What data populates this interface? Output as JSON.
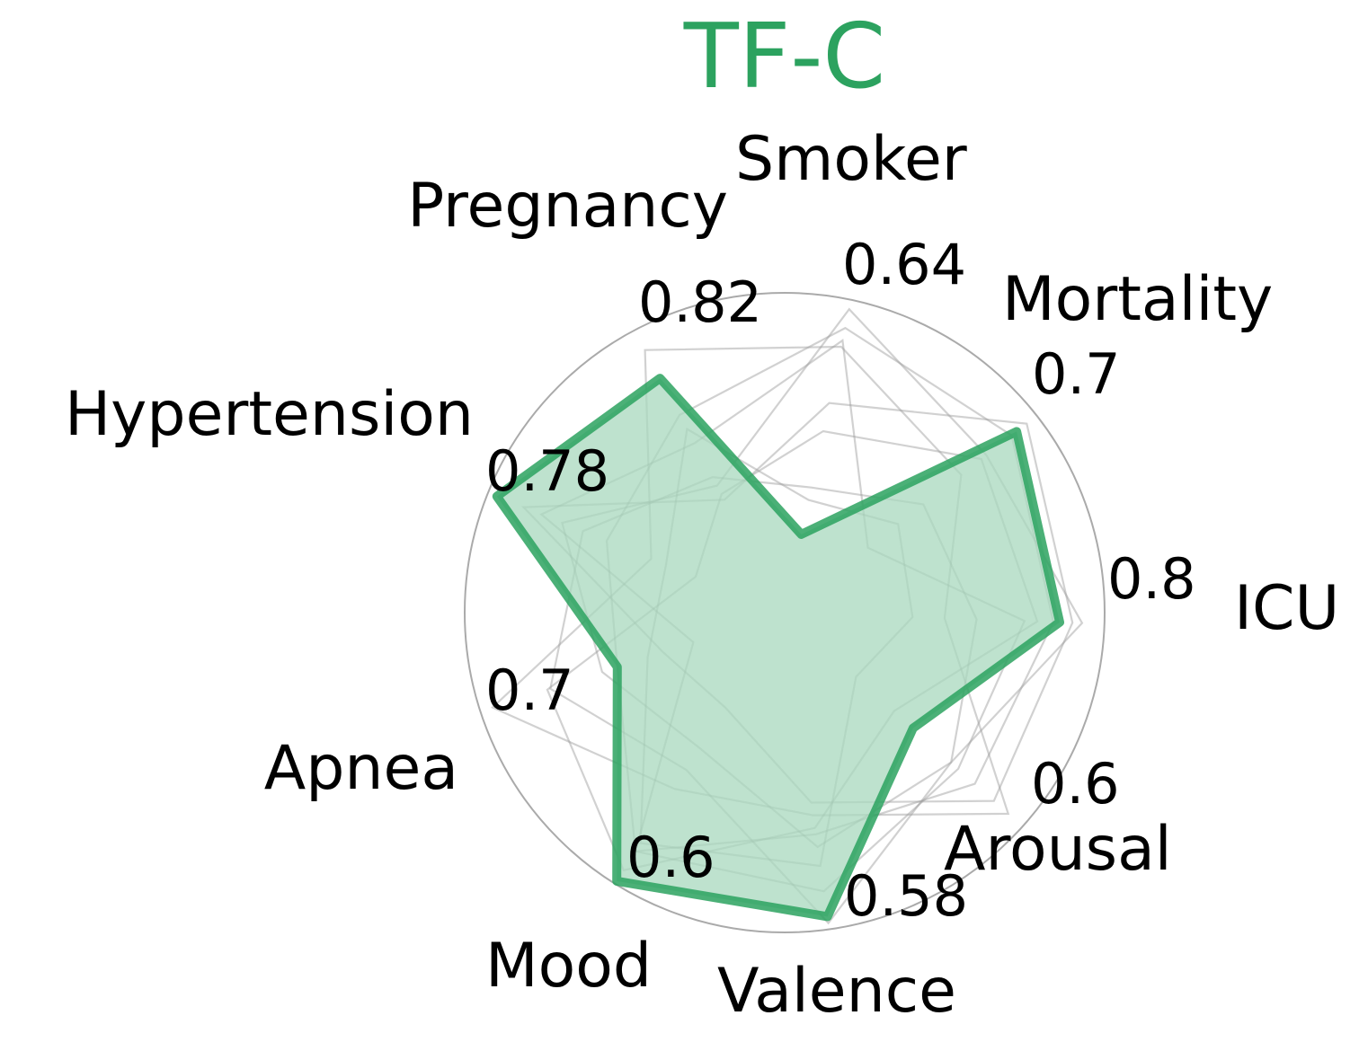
{
  "chart_data": {
    "type": "radar",
    "title": "TF-C",
    "title_color": "#2ca25f",
    "highlight_color": "#2ca25f",
    "fill_color": "#a8d8bd",
    "background_line_color": "#999999",
    "grid": "outer circle only",
    "categories": [
      "ICU",
      "Mortality",
      "Smoker",
      "Pregnancy",
      "Hypertension",
      "Apnea",
      "Mood",
      "Valence",
      "Arousal"
    ],
    "axis_max_labels": [
      "0.8",
      "0.7",
      "0.64",
      "0.82",
      "0.78",
      "0.7",
      "0.6",
      "0.58",
      "0.6"
    ],
    "highlighted_series": {
      "name": "TF-C",
      "values_normalized": [
        0.86,
        0.92,
        0.25,
        0.83,
        0.97,
        0.55,
        0.99,
        0.96,
        0.54
      ]
    },
    "background_series_normalized": [
      [
        0.93,
        0.8,
        0.97,
        0.45,
        0.75,
        0.6,
        0.5,
        0.74,
        0.7
      ],
      [
        0.84,
        0.9,
        0.91,
        0.7,
        0.6,
        0.55,
        0.88,
        0.7,
        0.8
      ],
      [
        0.79,
        0.78,
        0.58,
        0.42,
        0.3,
        0.78,
        0.95,
        0.68,
        0.46
      ],
      [
        0.75,
        0.33,
        0.87,
        0.6,
        0.82,
        0.3,
        0.88,
        0.88,
        0.73
      ],
      [
        0.5,
        0.7,
        0.85,
        0.93,
        0.45,
        0.96,
        0.65,
        0.64,
        0.94
      ],
      [
        0.9,
        0.96,
        0.67,
        0.4,
        0.88,
        0.4,
        0.35,
        0.6,
        0.88
      ],
      [
        0.6,
        0.55,
        0.4,
        0.48,
        0.68,
        0.77,
        0.58,
        0.98,
        0.7
      ],
      [
        0.4,
        0.45,
        0.36,
        0.65,
        0.4,
        0.45,
        0.85,
        0.8,
        0.3
      ]
    ]
  }
}
